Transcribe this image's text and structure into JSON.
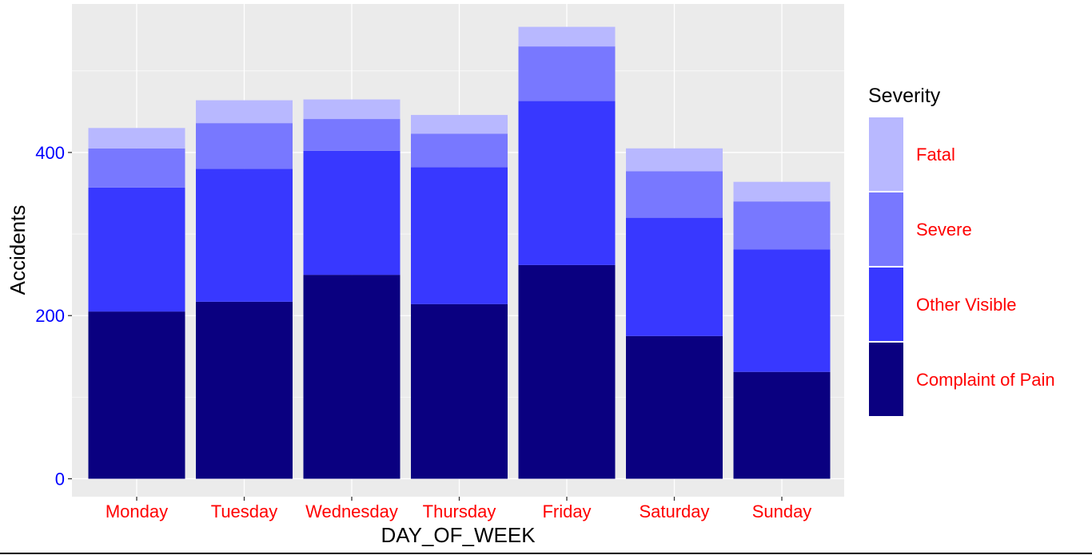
{
  "chart_data": {
    "type": "bar",
    "stacked": true,
    "categories": [
      "Monday",
      "Tuesday",
      "Wednesday",
      "Thursday",
      "Friday",
      "Saturday",
      "Sunday"
    ],
    "series": [
      {
        "name": "Complaint of Pain",
        "color": "#0a0080",
        "values": [
          205,
          217,
          250,
          214,
          262,
          175,
          131
        ]
      },
      {
        "name": "Other Visible",
        "color": "#3838ff",
        "values": [
          152,
          163,
          152,
          168,
          201,
          145,
          150
        ]
      },
      {
        "name": "Severe",
        "color": "#7878ff",
        "values": [
          48,
          56,
          39,
          41,
          67,
          57,
          59
        ]
      },
      {
        "name": "Fatal",
        "color": "#b8b8ff",
        "values": [
          25,
          28,
          24,
          23,
          24,
          28,
          24
        ]
      }
    ],
    "xlabel": "DAY_OF_WEEK",
    "ylabel": "Accidents",
    "ylim": [
      -22,
      582
    ],
    "yticks": [
      0,
      200,
      400
    ],
    "ytick_labels": [
      "0",
      "200",
      "400"
    ],
    "grid": true,
    "legend": {
      "title": "Severity",
      "placement": "right",
      "order": [
        "Fatal",
        "Severe",
        "Other Visible",
        "Complaint of Pain"
      ]
    },
    "colors": {
      "panel_background": "#ebebeb",
      "grid": "#ffffff",
      "ytick_label": "#0000ff",
      "xtick_label": "#ff0000",
      "legend_label": "#ff0000"
    }
  }
}
